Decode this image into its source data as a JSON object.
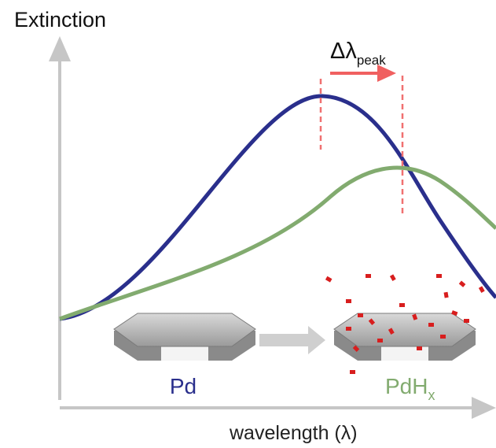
{
  "y_axis_label": "Extinction",
  "x_axis_label": "wavelength (λ)",
  "shift_label": {
    "symbol": "Δλ",
    "subscript": "peak"
  },
  "left_particle": {
    "label": "Pd"
  },
  "right_particle": {
    "label": "PdH",
    "subscript": "x"
  }
}
